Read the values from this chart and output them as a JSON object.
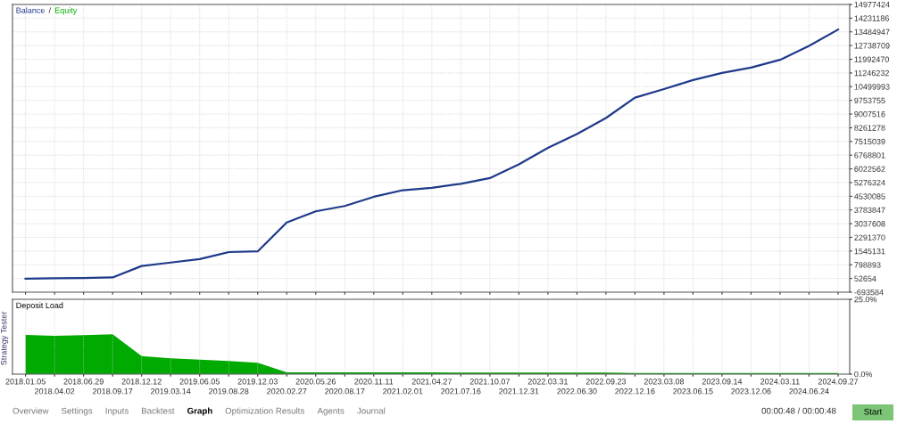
{
  "chart_data": [
    {
      "type": "line",
      "legend": "top left",
      "grid": true,
      "tick_labels": "y",
      "line_style": "solid",
      "ylim": [
        -693584,
        14977424
      ],
      "yticks": [
        -693584,
        52654,
        798893,
        1545131,
        2291370,
        3037608,
        3783847,
        4530085,
        5276324,
        6022562,
        6768801,
        7515039,
        8261278,
        9007516,
        9753755,
        10499993,
        11246232,
        11992470,
        12738709,
        13484947,
        14231186,
        14977424
      ],
      "categories": [
        "2018.01.05",
        "2018.04.02",
        "2018.06.29",
        "2018.09.17",
        "2018.12.12",
        "2019.03.14",
        "2019.06.05",
        "2019.08.28",
        "2019.12.03",
        "2020.02.27",
        "2020.05.26",
        "2020.08.17",
        "2020.11.11",
        "2021.02.01",
        "2021.04.27",
        "2021.07.16",
        "2021.10.07",
        "2021.12.31",
        "2022.03.31",
        "2022.06.30",
        "2022.09.23",
        "2022.12.16",
        "2023.03.08",
        "2023.06.15",
        "2023.09.14",
        "2023.12.06",
        "2024.03.11",
        "2024.06.24",
        "2024.09.27"
      ],
      "series": [
        {
          "name": "Equity",
          "color": "#00b000",
          "values": [
            null,
            null,
            null,
            null,
            null,
            null,
            null,
            null,
            null,
            null,
            null,
            null,
            null,
            null,
            null,
            null,
            null,
            null,
            null,
            null,
            null,
            null,
            null,
            null,
            null,
            null,
            null,
            null,
            null
          ]
        },
        {
          "name": "Balance",
          "color": "#1f3a8a",
          "values": [
            40000,
            60000,
            80000,
            110000,
            730000,
            920000,
            1110000,
            1490000,
            1530000,
            3100000,
            3710000,
            4000000,
            4500000,
            4860000,
            4990000,
            5210000,
            5520000,
            6270000,
            7170000,
            7920000,
            8790000,
            9900000,
            10370000,
            10860000,
            11250000,
            11540000,
            11960000,
            12720000,
            13610000
          ]
        }
      ],
      "annotations": [
        "/"
      ]
    },
    {
      "type": "area",
      "title": "Deposit Load",
      "grid": true,
      "ylim": [
        0,
        25
      ],
      "yticks": [
        {
          "value": 0,
          "label": "0.0%"
        },
        {
          "value": 25,
          "label": "25.0%"
        }
      ],
      "categories": [
        "2018.01.05",
        "2018.04.02",
        "2018.06.29",
        "2018.09.17",
        "2018.12.12",
        "2019.03.14",
        "2019.06.05",
        "2019.08.28",
        "2019.12.03",
        "2020.02.27",
        "2020.05.26",
        "2020.08.17",
        "2020.11.11",
        "2021.02.01",
        "2021.04.27",
        "2021.07.16",
        "2021.10.07",
        "2021.12.31",
        "2022.03.31",
        "2022.06.30",
        "2022.09.23",
        "2022.12.16",
        "2023.03.08",
        "2023.06.15",
        "2023.09.14",
        "2023.12.06",
        "2024.03.11",
        "2024.06.24",
        "2024.09.27"
      ],
      "series": [
        {
          "color": "#00aa00",
          "values": [
            13.1,
            12.8,
            13.0,
            13.3,
            6.0,
            5.3,
            4.8,
            4.4,
            3.8,
            0.6,
            0.6,
            0.6,
            0.6,
            0.6,
            0.6,
            0.5,
            0.5,
            0.5,
            0.5,
            0.5,
            0.5,
            0.4,
            0.4,
            0.4,
            0.4,
            0.4,
            0.4,
            0.4,
            0.4
          ]
        }
      ],
      "annotations": [
        "Strategy Tester",
        "Overview",
        "Settings",
        "Inputs",
        "Backtest",
        "Graph",
        "Optimization Results",
        "Agents",
        "Journal",
        "00:00:48 / 00:00:48",
        "Start"
      ]
    }
  ]
}
